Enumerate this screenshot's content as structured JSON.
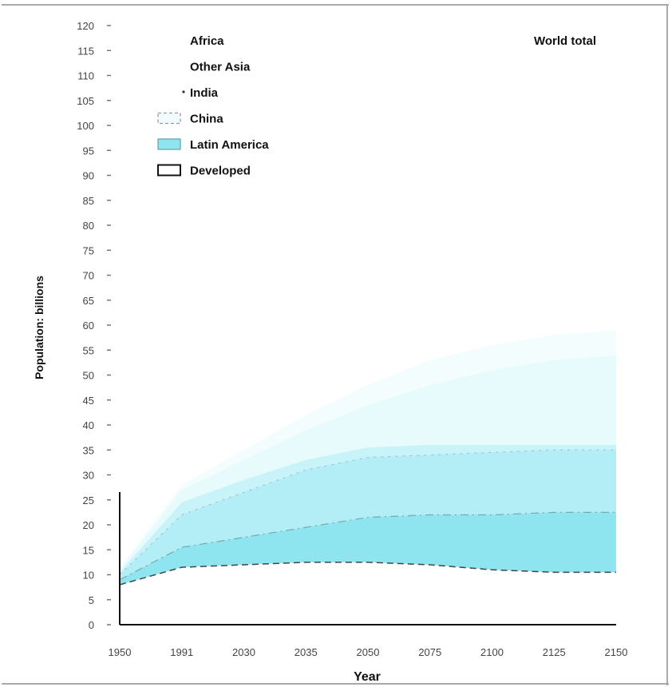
{
  "chart_data": {
    "type": "area",
    "title": "World total",
    "xlabel": "Year",
    "ylabel": "Population: billions",
    "x_tick_labels": [
      "1950",
      "1991",
      "2030",
      "2035",
      "2050",
      "2075",
      "2100",
      "2125",
      "2150"
    ],
    "y_tick_labels": [
      "0",
      "5",
      "10",
      "15",
      "20",
      "25",
      "30",
      "35",
      "40",
      "45",
      "50",
      "55",
      "60",
      "65",
      "70",
      "75",
      "80",
      "85",
      "90",
      "95",
      "100",
      "105",
      "110",
      "115",
      "120"
    ],
    "ylim": [
      0,
      120
    ],
    "legend": [
      "Africa",
      "Other Asia",
      "India",
      "China",
      "Latin America",
      "Developed"
    ],
    "legend_placement": "top-left",
    "grid": false,
    "series": [
      {
        "name": "Developed",
        "values": [
          8,
          11.5,
          12,
          12.5,
          12.5,
          12,
          11,
          10.5,
          10.5
        ]
      },
      {
        "name": "Latin America",
        "values": [
          9,
          15.5,
          17.5,
          19.5,
          21.5,
          22,
          22,
          22.5,
          22.5
        ]
      },
      {
        "name": "China",
        "values": [
          10,
          22,
          26.5,
          31,
          33.5,
          34,
          34.5,
          35,
          35
        ]
      },
      {
        "name": "India",
        "values": [
          10.5,
          24.5,
          29,
          33,
          35.5,
          36,
          36,
          36,
          36
        ]
      },
      {
        "name": "Other Asia",
        "values": [
          11,
          27,
          33,
          39,
          44,
          48,
          51,
          53,
          54
        ]
      },
      {
        "name": "Africa",
        "values": [
          11.5,
          28,
          35,
          42,
          48,
          53,
          56,
          58,
          59
        ]
      }
    ],
    "colors": {
      "Developed": "#ffffff",
      "Latin America": "#8ee4ef",
      "China": "#b3eef6",
      "India": "#c8f3f9",
      "Other Asia": "#e7fbfd",
      "Africa": "#f4fdfe"
    }
  }
}
